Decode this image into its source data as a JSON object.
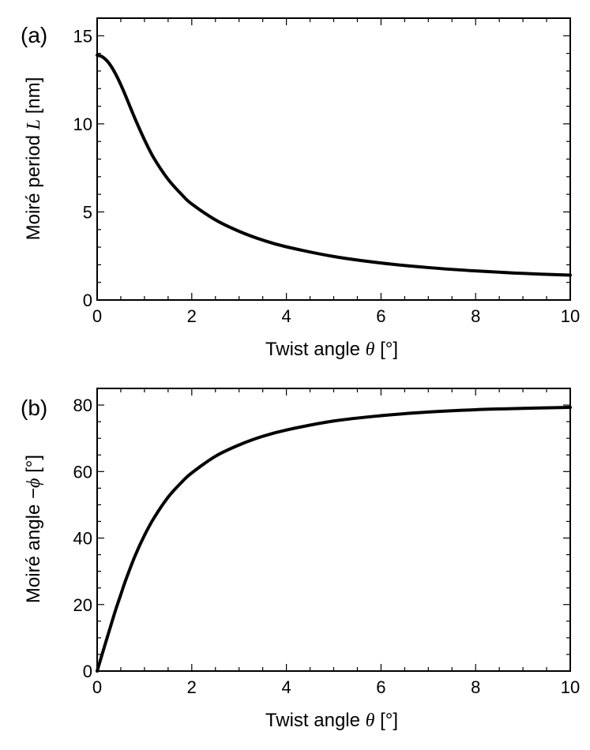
{
  "chart_data": [
    {
      "type": "line",
      "panel_label": "(a)",
      "xlabel": {
        "prefix": "Twist angle ",
        "symbol": "θ",
        "suffix": " [°]"
      },
      "ylabel": {
        "prefix": "Moiré period ",
        "symbol": "L",
        "suffix": " [nm]"
      },
      "xlim": [
        0,
        10
      ],
      "ylim": [
        0,
        16
      ],
      "xticks": [
        0,
        2,
        4,
        6,
        8,
        10
      ],
      "yticks": [
        0,
        5,
        10,
        15
      ],
      "x_minor_step": 0.5,
      "y_minor_step": 1,
      "grid": false,
      "series": [
        {
          "x": [
            0,
            0.1,
            0.2,
            0.3,
            0.4,
            0.5,
            0.6,
            0.8,
            1.0,
            1.2,
            1.5,
            1.8,
            2.0,
            2.5,
            3.0,
            3.5,
            4.0,
            5.0,
            6.0,
            7.0,
            8.0,
            9.0,
            10.0
          ],
          "y": [
            13.9,
            13.82,
            13.6,
            13.25,
            12.78,
            12.22,
            11.6,
            10.3,
            9.1,
            8.05,
            6.85,
            5.95,
            5.45,
            4.55,
            3.9,
            3.4,
            3.02,
            2.47,
            2.1,
            1.84,
            1.65,
            1.51,
            1.41
          ],
          "color": "#000000"
        }
      ]
    },
    {
      "type": "line",
      "panel_label": "(b)",
      "xlabel": {
        "prefix": "Twist angle ",
        "symbol": "θ",
        "suffix": " [°]"
      },
      "ylabel": {
        "prefix": "Moiré angle −",
        "symbol": "ϕ",
        "suffix": " [°]"
      },
      "xlim": [
        0,
        10
      ],
      "ylim": [
        0,
        85
      ],
      "xticks": [
        0,
        2,
        4,
        6,
        8,
        10
      ],
      "yticks": [
        0,
        20,
        40,
        60,
        80
      ],
      "x_minor_step": 0.5,
      "y_minor_step": 5,
      "grid": false,
      "series": [
        {
          "x": [
            0,
            0.1,
            0.2,
            0.3,
            0.4,
            0.5,
            0.6,
            0.8,
            1.0,
            1.2,
            1.5,
            1.8,
            2.0,
            2.5,
            3.0,
            3.5,
            4.0,
            5.0,
            6.0,
            7.0,
            8.0,
            9.0,
            10.0
          ],
          "y": [
            0,
            4.8,
            9.5,
            14.2,
            18.8,
            23.0,
            27.2,
            34.6,
            40.8,
            46.0,
            52.3,
            57.0,
            59.6,
            64.6,
            68.0,
            70.6,
            72.5,
            75.2,
            76.8,
            77.9,
            78.6,
            79.0,
            79.3
          ],
          "color": "#000000"
        }
      ]
    }
  ]
}
